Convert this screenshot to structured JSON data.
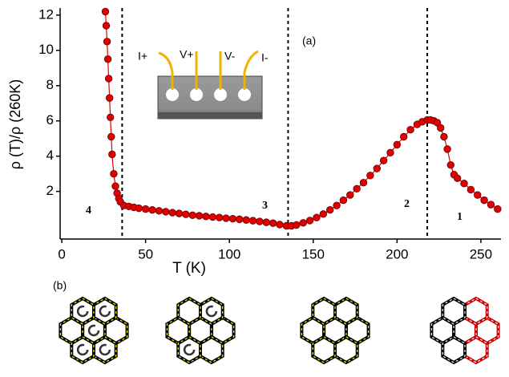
{
  "chart_data": {
    "type": "line",
    "x_label": "T (K)",
    "y_label": "ρ (T)/ρ (260K)",
    "x": [
      26,
      26.5,
      27,
      27.5,
      28,
      28.5,
      29,
      29.5,
      30,
      31,
      32,
      33,
      34,
      35,
      37,
      40,
      43,
      46,
      50,
      54,
      58,
      62,
      66,
      70,
      74,
      78,
      82,
      86,
      90,
      94,
      98,
      102,
      106,
      110,
      114,
      118,
      122,
      126,
      130,
      134,
      137,
      140,
      144,
      148,
      152,
      156,
      160,
      164,
      168,
      172,
      176,
      180,
      184,
      188,
      192,
      196,
      200,
      204,
      208,
      212,
      215,
      218,
      220,
      222,
      224,
      226,
      228,
      230,
      232,
      234,
      236,
      240,
      244,
      248,
      252,
      256,
      260
    ],
    "series": [
      {
        "color": "#e00000",
        "values": [
          12.2,
          11.4,
          10.5,
          9.5,
          8.4,
          7.3,
          6.2,
          5.1,
          4.1,
          3.0,
          2.3,
          1.9,
          1.6,
          1.4,
          1.2,
          1.15,
          1.1,
          1.05,
          1.0,
          0.95,
          0.9,
          0.85,
          0.8,
          0.75,
          0.7,
          0.65,
          0.62,
          0.58,
          0.55,
          0.52,
          0.48,
          0.45,
          0.42,
          0.38,
          0.34,
          0.3,
          0.25,
          0.2,
          0.12,
          0.05,
          0.05,
          0.1,
          0.22,
          0.35,
          0.52,
          0.72,
          0.95,
          1.2,
          1.5,
          1.8,
          2.15,
          2.5,
          2.9,
          3.3,
          3.75,
          4.2,
          4.65,
          5.1,
          5.5,
          5.8,
          5.95,
          6.05,
          6.05,
          6.0,
          5.9,
          5.6,
          5.1,
          4.4,
          3.5,
          2.95,
          2.75,
          2.45,
          2.1,
          1.8,
          1.5,
          1.25,
          1.0
        ]
      }
    ],
    "xlim": [
      -1,
      262
    ],
    "ylim": [
      -0.7,
      12.4
    ],
    "xticks": [
      0,
      50,
      100,
      150,
      200,
      250
    ],
    "yticks": [
      2,
      4,
      6,
      8,
      10,
      12
    ],
    "vertical_lines": [
      36,
      135,
      218
    ],
    "region_labels": [
      "4",
      "3",
      "2",
      "1"
    ],
    "panel_labels": [
      "(a)",
      "(b)"
    ],
    "inset_labels": [
      "I+",
      "V+",
      "V-",
      "I-"
    ]
  }
}
